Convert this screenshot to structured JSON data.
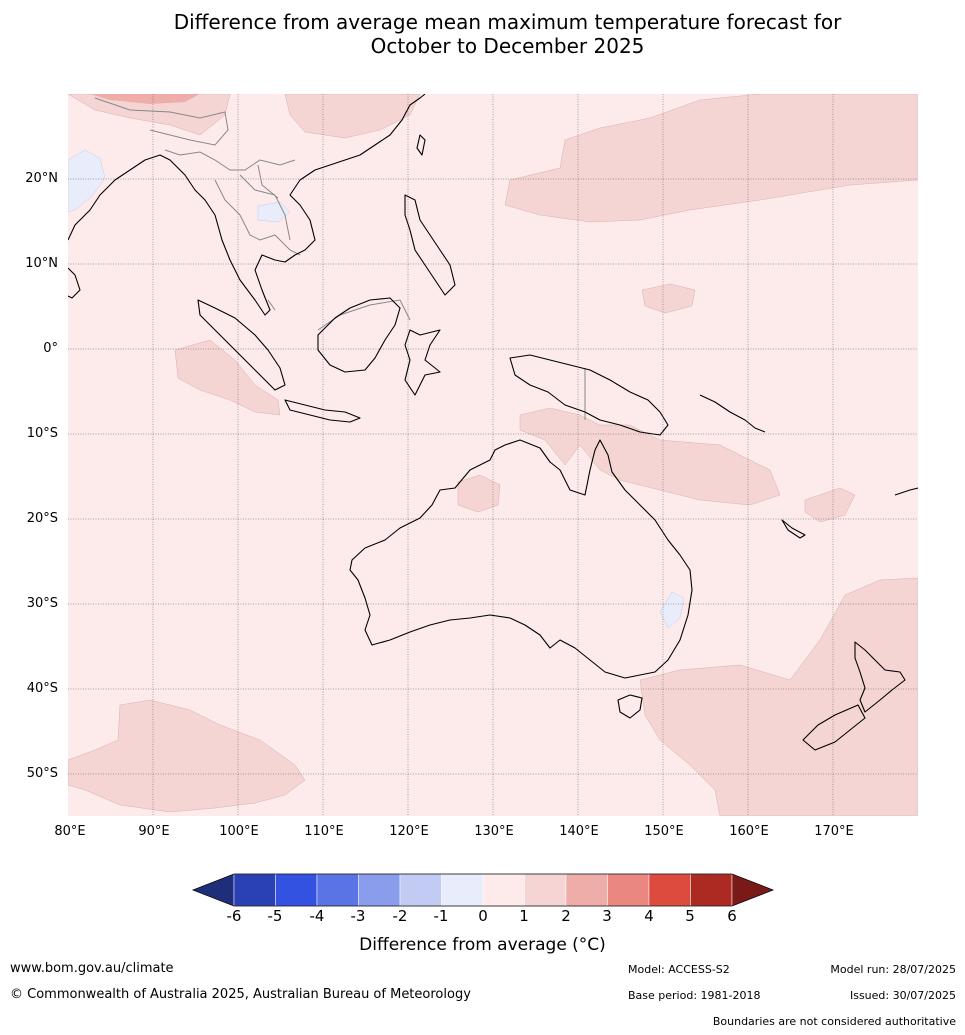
{
  "title": {
    "line1": "Difference from average mean maximum temperature forecast for",
    "line2": "October to December 2025"
  },
  "map": {
    "lat_labels": [
      "20°N",
      "10°N",
      "0°",
      "10°S",
      "20°S",
      "30°S",
      "40°S",
      "50°S"
    ],
    "lon_labels": [
      "80°E",
      "90°E",
      "100°E",
      "110°E",
      "120°E",
      "130°E",
      "140°E",
      "150°E",
      "160°E",
      "170°E"
    ]
  },
  "colorbar": {
    "ticks": [
      "-6",
      "-5",
      "-4",
      "-3",
      "-2",
      "-1",
      "0",
      "1",
      "2",
      "3",
      "4",
      "5",
      "6"
    ],
    "colors": [
      "#1f2e7a",
      "#2a40b5",
      "#3352e2",
      "#5a74e6",
      "#8a9ded",
      "#c2cbf4",
      "#e8ecfb",
      "#fcebea",
      "#f5d4d4",
      "#eeada9",
      "#e98780",
      "#dc4b3d",
      "#ad2a22",
      "#7a1a18"
    ],
    "label": "Difference from average (°C)"
  },
  "footer": {
    "website": "www.bom.gov.au/climate",
    "copyright": "© Commonwealth of Australia 2025, Australian Bureau of Meteorology",
    "model": "Model: ACCESS-S2",
    "model_run": "Model run: 28/07/2025",
    "base_period": "Base period: 1981-2018",
    "issued": "Issued: 30/07/2025",
    "disclaimer": "Boundaries are not considered authoritative"
  }
}
